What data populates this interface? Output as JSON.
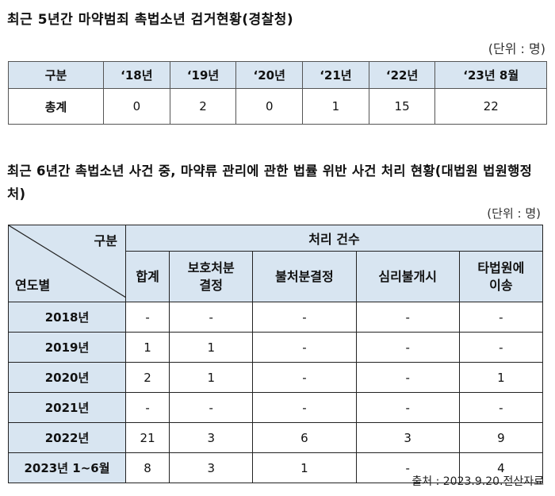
{
  "section1": {
    "title": "최근 5년간 마약범죄 촉법소년 검거현황(경찰청)",
    "unit": "(단위 : 명)",
    "headers": [
      "구분",
      "‘18년",
      "‘19년",
      "‘20년",
      "‘21년",
      "‘22년",
      "‘23년 8월"
    ],
    "rows": [
      [
        "총계",
        "0",
        "2",
        "0",
        "1",
        "15",
        "22"
      ]
    ]
  },
  "section2": {
    "title": "최근 6년간 촉법소년 사건 중, 마약류 관리에 관한 법률 위반 사건 처리 현황(대법원 법원행정처)",
    "unit": "(단위 : 명)",
    "corner_top": "구분",
    "corner_bottom": "연도별",
    "group_header": "처리 건수",
    "columns": [
      "합계",
      "보호처분\n결정",
      "불처분결정",
      "심리불개시",
      "타법원에\n이송"
    ],
    "rows": [
      [
        "2018년",
        "-",
        "-",
        "-",
        "-",
        "-"
      ],
      [
        "2019년",
        "1",
        "1",
        "-",
        "-",
        "-"
      ],
      [
        "2020년",
        "2",
        "1",
        "-",
        "-",
        "1"
      ],
      [
        "2021년",
        "-",
        "-",
        "-",
        "-",
        "-"
      ],
      [
        "2022년",
        "21",
        "3",
        "6",
        "3",
        "9"
      ],
      [
        "2023년 1~6월",
        "8",
        "3",
        "1",
        "-",
        "4"
      ]
    ]
  },
  "source": "출처 : 2023.9.20.전산자료"
}
